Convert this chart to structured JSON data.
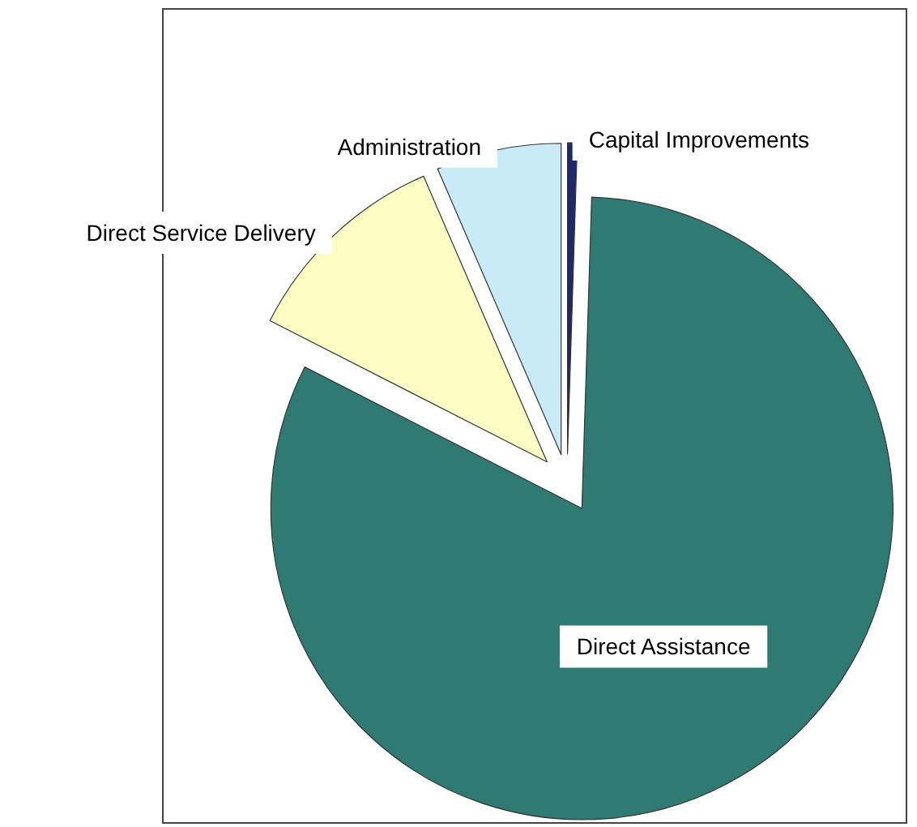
{
  "chart_data": {
    "type": "pie",
    "categories": [
      "Capital Improvements",
      "Direct Assistance",
      "Direct Service Delivery",
      "Administration"
    ],
    "values": [
      0.5,
      82,
      11,
      6.5
    ],
    "colors": [
      "#1c2a6e",
      "#2f7a72",
      "#fdfdc4",
      "#c9ebf8"
    ]
  }
}
